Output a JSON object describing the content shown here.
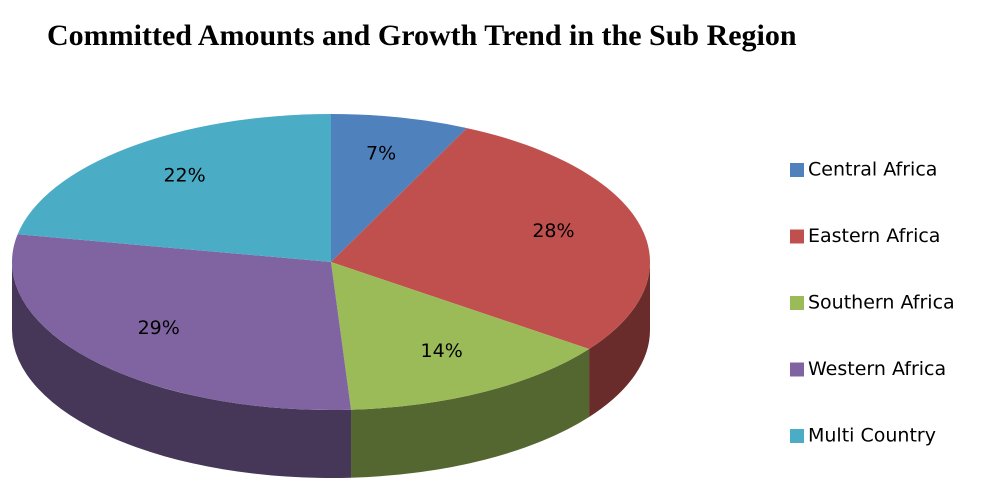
{
  "chart_data": {
    "type": "pie3d",
    "title": "Committed Amounts and Growth Trend in the Sub Region",
    "categories": [
      "Central Africa",
      "Eastern Africa",
      "Southern Africa",
      "Western Africa",
      "Multi Country"
    ],
    "values": [
      7,
      28,
      14,
      29,
      22
    ],
    "value_labels": [
      "7%",
      "28%",
      "14%",
      "29%",
      "22%"
    ],
    "colors": [
      "#4f81bd",
      "#c0504d",
      "#9bbb59",
      "#8064a2",
      "#4bacc6"
    ],
    "legend": "right"
  }
}
